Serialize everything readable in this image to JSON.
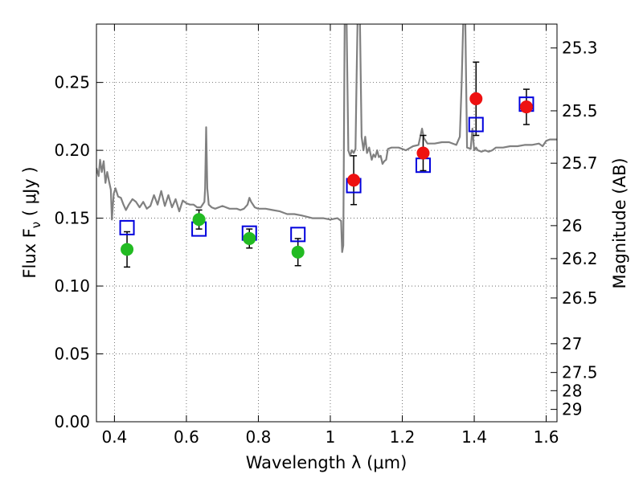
{
  "chart_data": {
    "type": "scatter",
    "title": "",
    "xlabel": "Wavelength  λ (μm)",
    "ylabel": "Flux  F",
    "ylabel_subscript": "ν",
    "ylabel_unit": "  ( μJy )",
    "y2label": "Magnitude (AB)",
    "xlim": [
      0.35,
      1.63
    ],
    "ylim": [
      0.0,
      0.293
    ],
    "grid": true,
    "x_ticks": [
      0.4,
      0.6,
      0.8,
      1.0,
      1.2,
      1.4,
      1.6
    ],
    "x_tick_labels": [
      "0.4",
      "0.6",
      "0.8",
      "1",
      "1.2",
      "1.4",
      "1.6"
    ],
    "y_ticks": [
      0.0,
      0.05,
      0.1,
      0.15,
      0.2,
      0.25
    ],
    "y_tick_labels": [
      "0.00",
      "0.05",
      "0.10",
      "0.15",
      "0.20",
      "0.25"
    ],
    "y2_ticks": [
      {
        "flux": 0.2754,
        "label": "25.3"
      },
      {
        "flux": 0.2291,
        "label": "25.5"
      },
      {
        "flux": 0.1905,
        "label": "25.7"
      },
      {
        "flux": 0.1445,
        "label": "26"
      },
      {
        "flux": 0.1202,
        "label": "26.2"
      },
      {
        "flux": 0.0912,
        "label": "26.5"
      },
      {
        "flux": 0.0575,
        "label": "27"
      },
      {
        "flux": 0.0363,
        "label": "27.5"
      },
      {
        "flux": 0.0229,
        "label": "28"
      },
      {
        "flux": 0.0091,
        "label": "29"
      }
    ],
    "series": [
      {
        "marker": "circle",
        "color": "#22bb22",
        "points": [
          {
            "x": 0.435,
            "y": 0.127,
            "err": 0.013
          },
          {
            "x": 0.635,
            "y": 0.149,
            "err": 0.007
          },
          {
            "x": 0.775,
            "y": 0.135,
            "err": 0.007
          },
          {
            "x": 0.91,
            "y": 0.125,
            "err": 0.01
          }
        ]
      },
      {
        "marker": "circle",
        "color": "#ee1111",
        "points": [
          {
            "x": 1.065,
            "y": 0.178,
            "err": 0.018
          },
          {
            "x": 1.258,
            "y": 0.198,
            "err": 0.013
          },
          {
            "x": 1.405,
            "y": 0.238,
            "err": 0.027
          },
          {
            "x": 1.545,
            "y": 0.232,
            "err": 0.013
          }
        ]
      },
      {
        "marker": "open-square",
        "color": "#0000dd",
        "points": [
          {
            "x": 0.435,
            "y": 0.143
          },
          {
            "x": 0.635,
            "y": 0.142
          },
          {
            "x": 0.775,
            "y": 0.139
          },
          {
            "x": 0.91,
            "y": 0.138
          },
          {
            "x": 1.065,
            "y": 0.174
          },
          {
            "x": 1.258,
            "y": 0.189
          },
          {
            "x": 1.405,
            "y": 0.219
          },
          {
            "x": 1.545,
            "y": 0.234
          }
        ]
      },
      {
        "marker": "line",
        "color": "#808080",
        "points": [
          [
            0.35,
            0.187
          ],
          [
            0.356,
            0.181
          ],
          [
            0.36,
            0.193
          ],
          [
            0.365,
            0.184
          ],
          [
            0.37,
            0.192
          ],
          [
            0.375,
            0.176
          ],
          [
            0.38,
            0.184
          ],
          [
            0.385,
            0.177
          ],
          [
            0.39,
            0.171
          ],
          [
            0.393,
            0.149
          ],
          [
            0.398,
            0.168
          ],
          [
            0.403,
            0.172
          ],
          [
            0.41,
            0.166
          ],
          [
            0.418,
            0.165
          ],
          [
            0.425,
            0.16
          ],
          [
            0.432,
            0.156
          ],
          [
            0.44,
            0.16
          ],
          [
            0.45,
            0.164
          ],
          [
            0.46,
            0.162
          ],
          [
            0.47,
            0.158
          ],
          [
            0.48,
            0.162
          ],
          [
            0.49,
            0.157
          ],
          [
            0.5,
            0.159
          ],
          [
            0.51,
            0.167
          ],
          [
            0.52,
            0.16
          ],
          [
            0.53,
            0.17
          ],
          [
            0.54,
            0.159
          ],
          [
            0.55,
            0.167
          ],
          [
            0.56,
            0.158
          ],
          [
            0.57,
            0.164
          ],
          [
            0.58,
            0.155
          ],
          [
            0.59,
            0.163
          ],
          [
            0.6,
            0.161
          ],
          [
            0.61,
            0.16
          ],
          [
            0.62,
            0.16
          ],
          [
            0.63,
            0.158
          ],
          [
            0.64,
            0.158
          ],
          [
            0.65,
            0.162
          ],
          [
            0.652,
            0.172
          ],
          [
            0.655,
            0.217
          ],
          [
            0.658,
            0.172
          ],
          [
            0.662,
            0.16
          ],
          [
            0.67,
            0.158
          ],
          [
            0.68,
            0.157
          ],
          [
            0.7,
            0.159
          ],
          [
            0.72,
            0.157
          ],
          [
            0.74,
            0.157
          ],
          [
            0.75,
            0.156
          ],
          [
            0.76,
            0.157
          ],
          [
            0.77,
            0.16
          ],
          [
            0.775,
            0.165
          ],
          [
            0.78,
            0.162
          ],
          [
            0.79,
            0.158
          ],
          [
            0.8,
            0.157
          ],
          [
            0.82,
            0.157
          ],
          [
            0.84,
            0.156
          ],
          [
            0.86,
            0.155
          ],
          [
            0.88,
            0.153
          ],
          [
            0.9,
            0.153
          ],
          [
            0.92,
            0.152
          ],
          [
            0.95,
            0.15
          ],
          [
            0.98,
            0.15
          ],
          [
            1.0,
            0.149
          ],
          [
            1.02,
            0.15
          ],
          [
            1.03,
            0.148
          ],
          [
            1.033,
            0.125
          ],
          [
            1.036,
            0.13
          ],
          [
            1.04,
            0.3
          ],
          [
            1.045,
            0.3
          ],
          [
            1.05,
            0.2
          ],
          [
            1.055,
            0.196
          ],
          [
            1.06,
            0.2
          ],
          [
            1.065,
            0.198
          ],
          [
            1.07,
            0.201
          ],
          [
            1.073,
            0.255
          ],
          [
            1.076,
            0.3
          ],
          [
            1.082,
            0.3
          ],
          [
            1.087,
            0.21
          ],
          [
            1.092,
            0.2
          ],
          [
            1.097,
            0.21
          ],
          [
            1.102,
            0.198
          ],
          [
            1.108,
            0.202
          ],
          [
            1.115,
            0.193
          ],
          [
            1.12,
            0.197
          ],
          [
            1.125,
            0.195
          ],
          [
            1.13,
            0.2
          ],
          [
            1.135,
            0.195
          ],
          [
            1.14,
            0.196
          ],
          [
            1.145,
            0.19
          ],
          [
            1.15,
            0.192
          ],
          [
            1.155,
            0.193
          ],
          [
            1.16,
            0.201
          ],
          [
            1.17,
            0.202
          ],
          [
            1.19,
            0.202
          ],
          [
            1.21,
            0.2
          ],
          [
            1.23,
            0.203
          ],
          [
            1.245,
            0.204
          ],
          [
            1.25,
            0.21
          ],
          [
            1.255,
            0.216
          ],
          [
            1.26,
            0.209
          ],
          [
            1.27,
            0.205
          ],
          [
            1.29,
            0.205
          ],
          [
            1.31,
            0.206
          ],
          [
            1.33,
            0.206
          ],
          [
            1.35,
            0.204
          ],
          [
            1.36,
            0.21
          ],
          [
            1.365,
            0.25
          ],
          [
            1.37,
            0.3
          ],
          [
            1.375,
            0.3
          ],
          [
            1.38,
            0.202
          ],
          [
            1.39,
            0.201
          ],
          [
            1.395,
            0.216
          ],
          [
            1.4,
            0.2
          ],
          [
            1.405,
            0.202
          ],
          [
            1.41,
            0.2
          ],
          [
            1.42,
            0.199
          ],
          [
            1.43,
            0.2
          ],
          [
            1.44,
            0.199
          ],
          [
            1.45,
            0.2
          ],
          [
            1.46,
            0.202
          ],
          [
            1.48,
            0.202
          ],
          [
            1.5,
            0.203
          ],
          [
            1.52,
            0.203
          ],
          [
            1.54,
            0.204
          ],
          [
            1.56,
            0.204
          ],
          [
            1.58,
            0.205
          ],
          [
            1.59,
            0.203
          ],
          [
            1.6,
            0.207
          ],
          [
            1.61,
            0.208
          ],
          [
            1.63,
            0.208
          ]
        ]
      }
    ]
  }
}
